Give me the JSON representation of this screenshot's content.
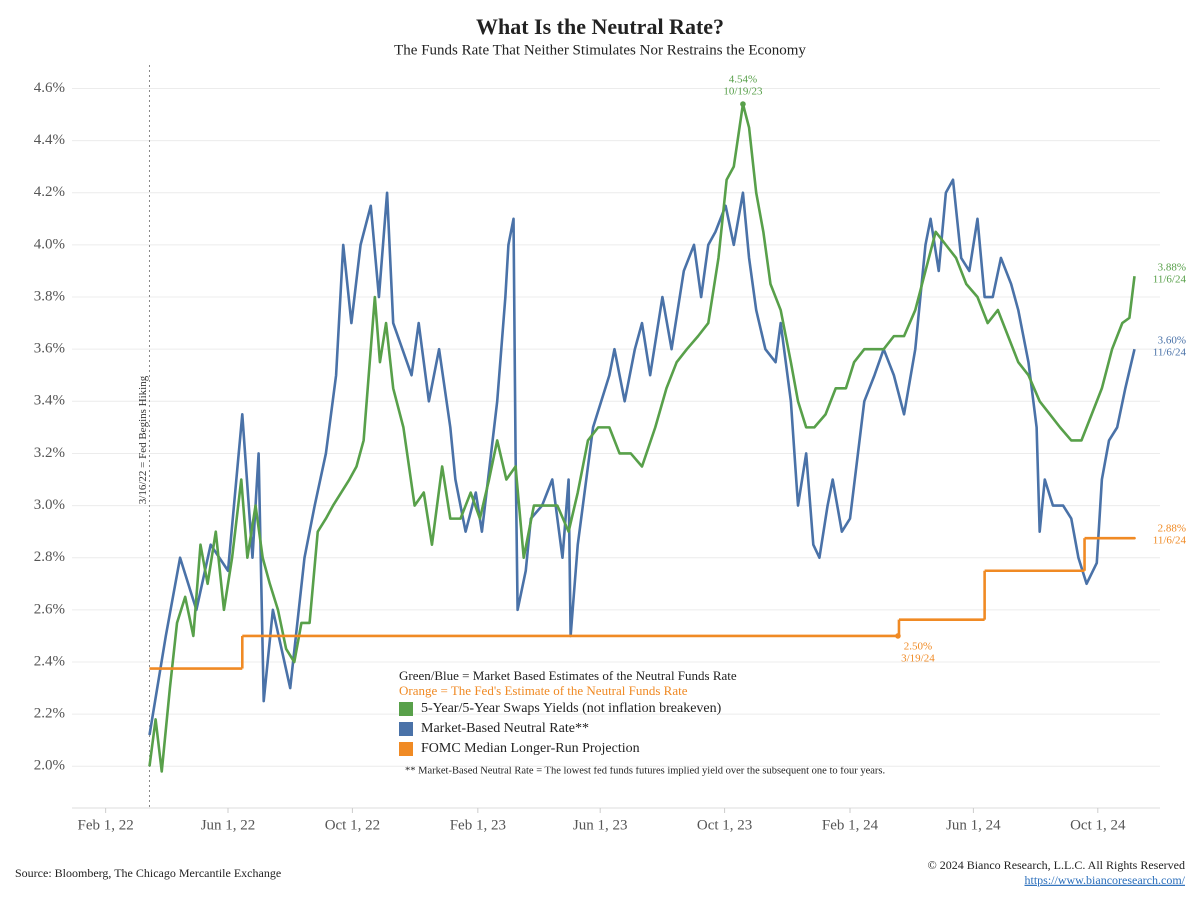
{
  "chart_data": {
    "type": "line",
    "title": "What Is the Neutral Rate?",
    "subtitle": "The Funds Rate That Neither Stimulates Nor Restrains the Economy",
    "xlim": [
      "2021-12-30",
      "2024-12-01"
    ],
    "ylim": [
      1.84,
      4.69
    ],
    "xticks": [
      {
        "value": "2022-02-01",
        "label": "Feb 1, 22"
      },
      {
        "value": "2022-06-01",
        "label": "Jun 1, 22"
      },
      {
        "value": "2022-10-01",
        "label": "Oct 1, 22"
      },
      {
        "value": "2023-02-01",
        "label": "Feb 1, 23"
      },
      {
        "value": "2023-06-01",
        "label": "Jun 1, 23"
      },
      {
        "value": "2023-10-01",
        "label": "Oct 1, 23"
      },
      {
        "value": "2024-02-01",
        "label": "Feb 1, 24"
      },
      {
        "value": "2024-06-01",
        "label": "Jun 1, 24"
      },
      {
        "value": "2024-10-01",
        "label": "Oct 1, 24"
      }
    ],
    "yticks": [
      {
        "value": 2.0,
        "label": "2.0%"
      },
      {
        "value": 2.2,
        "label": "2.2%"
      },
      {
        "value": 2.4,
        "label": "2.4%"
      },
      {
        "value": 2.6,
        "label": "2.6%"
      },
      {
        "value": 2.8,
        "label": "2.8%"
      },
      {
        "value": 3.0,
        "label": "3.0%"
      },
      {
        "value": 3.2,
        "label": "3.2%"
      },
      {
        "value": 3.4,
        "label": "3.4%"
      },
      {
        "value": 3.6,
        "label": "3.6%"
      },
      {
        "value": 3.8,
        "label": "3.8%"
      },
      {
        "value": 4.0,
        "label": "4.0%"
      },
      {
        "value": 4.2,
        "label": "4.2%"
      },
      {
        "value": 4.4,
        "label": "4.4%"
      },
      {
        "value": 4.6,
        "label": "4.6%"
      }
    ],
    "grid": true,
    "event_line": {
      "x": "2022-03-16",
      "label": "3/16/22 = Fed Begins Hiking"
    },
    "legend_heading": [
      "Green/Blue = Market Based Estimates of the Neutral Funds Rate",
      "Orange = The Fed's Estimate of the Neutral Funds Rate"
    ],
    "footnote": "** Market-Based Neutral Rate = The lowest fed funds futures implied yield over the subsequent one to four years.",
    "source": "Source: Bloomberg, The Chicago Mercantile Exchange",
    "copyright": "© 2024 Bianco Research, L.L.C. All Rights Reserved",
    "url": "https://www.biancoresearch.com/",
    "series": [
      {
        "name": "5-Year/5-Year Swaps Yields (not inflation breakeven)",
        "color": "#58a04a",
        "style": "line",
        "x": [
          "2022-03-16",
          "2022-03-22",
          "2022-03-28",
          "2022-04-05",
          "2022-04-12",
          "2022-04-20",
          "2022-04-28",
          "2022-05-05",
          "2022-05-12",
          "2022-05-20",
          "2022-05-28",
          "2022-06-05",
          "2022-06-14",
          "2022-06-20",
          "2022-06-28",
          "2022-07-05",
          "2022-07-12",
          "2022-07-20",
          "2022-07-28",
          "2022-08-05",
          "2022-08-12",
          "2022-08-20",
          "2022-08-28",
          "2022-09-05",
          "2022-09-12",
          "2022-09-20",
          "2022-09-28",
          "2022-10-05",
          "2022-10-12",
          "2022-10-23",
          "2022-10-28",
          "2022-11-03",
          "2022-11-10",
          "2022-11-20",
          "2022-12-01",
          "2022-12-10",
          "2022-12-18",
          "2022-12-28",
          "2023-01-05",
          "2023-01-15",
          "2023-01-25",
          "2023-02-03",
          "2023-02-12",
          "2023-02-20",
          "2023-03-01",
          "2023-03-10",
          "2023-03-18",
          "2023-03-28",
          "2023-04-10",
          "2023-04-20",
          "2023-05-01",
          "2023-05-10",
          "2023-05-20",
          "2023-05-30",
          "2023-06-10",
          "2023-06-20",
          "2023-07-01",
          "2023-07-12",
          "2023-07-25",
          "2023-08-05",
          "2023-08-15",
          "2023-08-25",
          "2023-09-05",
          "2023-09-15",
          "2023-09-25",
          "2023-10-03",
          "2023-10-10",
          "2023-10-19",
          "2023-10-25",
          "2023-11-01",
          "2023-11-08",
          "2023-11-15",
          "2023-11-25",
          "2023-12-05",
          "2023-12-12",
          "2023-12-20",
          "2023-12-28",
          "2024-01-08",
          "2024-01-18",
          "2024-01-28",
          "2024-02-05",
          "2024-02-15",
          "2024-02-25",
          "2024-03-05",
          "2024-03-15",
          "2024-03-25",
          "2024-04-05",
          "2024-04-15",
          "2024-04-25",
          "2024-05-05",
          "2024-05-15",
          "2024-05-25",
          "2024-06-05",
          "2024-06-15",
          "2024-06-25",
          "2024-07-05",
          "2024-07-15",
          "2024-07-25",
          "2024-08-05",
          "2024-08-15",
          "2024-08-25",
          "2024-09-05",
          "2024-09-15",
          "2024-09-25",
          "2024-10-05",
          "2024-10-15",
          "2024-10-25",
          "2024-11-01",
          "2024-11-06"
        ],
        "values": [
          2.0,
          2.18,
          1.98,
          2.3,
          2.55,
          2.65,
          2.5,
          2.85,
          2.7,
          2.9,
          2.6,
          2.8,
          3.1,
          2.8,
          3.0,
          2.8,
          2.7,
          2.6,
          2.45,
          2.4,
          2.55,
          2.55,
          2.9,
          2.95,
          3.0,
          3.05,
          3.1,
          3.15,
          3.25,
          3.8,
          3.55,
          3.7,
          3.45,
          3.3,
          3.0,
          3.05,
          2.85,
          3.15,
          2.95,
          2.95,
          3.05,
          2.95,
          3.1,
          3.25,
          3.1,
          3.15,
          2.8,
          3.0,
          3.0,
          3.0,
          2.9,
          3.05,
          3.25,
          3.3,
          3.3,
          3.2,
          3.2,
          3.15,
          3.3,
          3.45,
          3.55,
          3.6,
          3.65,
          3.7,
          3.95,
          4.25,
          4.3,
          4.54,
          4.45,
          4.2,
          4.05,
          3.85,
          3.75,
          3.55,
          3.4,
          3.3,
          3.3,
          3.35,
          3.45,
          3.45,
          3.55,
          3.6,
          3.6,
          3.6,
          3.65,
          3.65,
          3.75,
          3.9,
          4.05,
          4.0,
          3.95,
          3.85,
          3.8,
          3.7,
          3.75,
          3.65,
          3.55,
          3.5,
          3.4,
          3.35,
          3.3,
          3.25,
          3.25,
          3.35,
          3.45,
          3.6,
          3.7,
          3.72,
          3.88
        ]
      },
      {
        "name": "Market-Based Neutral Rate**",
        "color": "#4a72a8",
        "style": "line",
        "x": [
          "2022-03-16",
          "2022-04-01",
          "2022-04-15",
          "2022-05-01",
          "2022-05-15",
          "2022-06-01",
          "2022-06-15",
          "2022-06-25",
          "2022-07-01",
          "2022-07-06",
          "2022-07-15",
          "2022-08-01",
          "2022-08-15",
          "2022-08-25",
          "2022-09-05",
          "2022-09-15",
          "2022-09-22",
          "2022-09-30",
          "2022-10-09",
          "2022-10-19",
          "2022-10-27",
          "2022-11-04",
          "2022-11-10",
          "2022-11-28",
          "2022-12-05",
          "2022-12-15",
          "2022-12-25",
          "2023-01-05",
          "2023-01-10",
          "2023-01-20",
          "2023-01-30",
          "2023-02-05",
          "2023-02-20",
          "2023-02-28",
          "2023-03-03",
          "2023-03-08",
          "2023-03-10",
          "2023-03-12",
          "2023-03-20",
          "2023-03-25",
          "2023-04-05",
          "2023-04-15",
          "2023-04-25",
          "2023-05-01",
          "2023-05-03",
          "2023-05-10",
          "2023-05-25",
          "2023-06-10",
          "2023-06-15",
          "2023-06-25",
          "2023-07-05",
          "2023-07-12",
          "2023-07-20",
          "2023-08-01",
          "2023-08-10",
          "2023-08-22",
          "2023-09-01",
          "2023-09-08",
          "2023-09-15",
          "2023-09-22",
          "2023-10-02",
          "2023-10-10",
          "2023-10-19",
          "2023-10-25",
          "2023-11-01",
          "2023-11-10",
          "2023-11-20",
          "2023-11-25",
          "2023-12-05",
          "2023-12-12",
          "2023-12-20",
          "2023-12-27",
          "2024-01-02",
          "2024-01-10",
          "2024-01-15",
          "2024-01-24",
          "2024-02-01",
          "2024-02-15",
          "2024-02-25",
          "2024-03-05",
          "2024-03-15",
          "2024-03-25",
          "2024-04-05",
          "2024-04-15",
          "2024-04-20",
          "2024-04-28",
          "2024-05-05",
          "2024-05-12",
          "2024-05-20",
          "2024-05-28",
          "2024-06-05",
          "2024-06-12",
          "2024-06-20",
          "2024-06-28",
          "2024-07-08",
          "2024-07-15",
          "2024-07-25",
          "2024-08-02",
          "2024-08-05",
          "2024-08-10",
          "2024-08-18",
          "2024-08-28",
          "2024-09-05",
          "2024-09-12",
          "2024-09-20",
          "2024-09-30",
          "2024-10-05",
          "2024-10-12",
          "2024-10-20",
          "2024-10-28",
          "2024-11-06"
        ],
        "values": [
          2.12,
          2.5,
          2.8,
          2.6,
          2.85,
          2.75,
          3.35,
          2.8,
          3.2,
          2.25,
          2.6,
          2.3,
          2.8,
          3.0,
          3.2,
          3.5,
          4.0,
          3.7,
          4.0,
          4.15,
          3.8,
          4.2,
          3.7,
          3.5,
          3.7,
          3.4,
          3.6,
          3.3,
          3.1,
          2.9,
          3.05,
          2.9,
          3.4,
          3.8,
          4.0,
          4.1,
          3.2,
          2.6,
          2.75,
          2.95,
          3.0,
          3.1,
          2.8,
          3.1,
          2.5,
          2.85,
          3.3,
          3.5,
          3.6,
          3.4,
          3.6,
          3.7,
          3.5,
          3.8,
          3.6,
          3.9,
          4.0,
          3.8,
          4.0,
          4.05,
          4.15,
          4.0,
          4.2,
          3.95,
          3.75,
          3.6,
          3.55,
          3.7,
          3.4,
          3.0,
          3.2,
          2.85,
          2.8,
          3.0,
          3.1,
          2.9,
          2.95,
          3.4,
          3.5,
          3.6,
          3.5,
          3.35,
          3.6,
          4.0,
          4.1,
          3.9,
          4.2,
          4.25,
          3.95,
          3.9,
          4.1,
          3.8,
          3.8,
          3.95,
          3.85,
          3.75,
          3.55,
          3.3,
          2.9,
          3.1,
          3.0,
          3.0,
          2.95,
          2.8,
          2.7,
          2.78,
          3.1,
          3.25,
          3.3,
          3.45,
          3.6
        ]
      },
      {
        "name": "FOMC Median Longer-Run Projection",
        "color": "#f08a24",
        "style": "step",
        "x": [
          "2022-03-16",
          "2022-06-15",
          "2024-03-19",
          "2024-03-20",
          "2024-06-12",
          "2024-09-18",
          "2024-11-06"
        ],
        "values": [
          2.375,
          2.5,
          2.5,
          2.5625,
          2.75,
          2.875,
          2.875
        ]
      }
    ],
    "annotations": [
      {
        "series": 0,
        "x": "2023-10-19",
        "value": 4.54,
        "label": "4.54%",
        "date_label": "10/19/23",
        "placement": "above",
        "dot": true
      },
      {
        "series": 0,
        "x": "2024-11-06",
        "value": 3.88,
        "label": "3.88%",
        "date_label": "11/6/24",
        "placement": "right",
        "dot": false
      },
      {
        "series": 1,
        "x": "2024-11-06",
        "value": 3.6,
        "label": "3.60%",
        "date_label": "11/6/24",
        "placement": "right",
        "dot": false
      },
      {
        "series": 2,
        "x": "2024-11-06",
        "value": 2.88,
        "label": "2.88%",
        "date_label": "11/6/24",
        "placement": "right",
        "dot": false
      },
      {
        "series": 2,
        "x": "2024-03-19",
        "value": 2.5,
        "label": "2.50%",
        "date_label": "3/19/24",
        "placement": "below",
        "dot": true
      }
    ]
  }
}
